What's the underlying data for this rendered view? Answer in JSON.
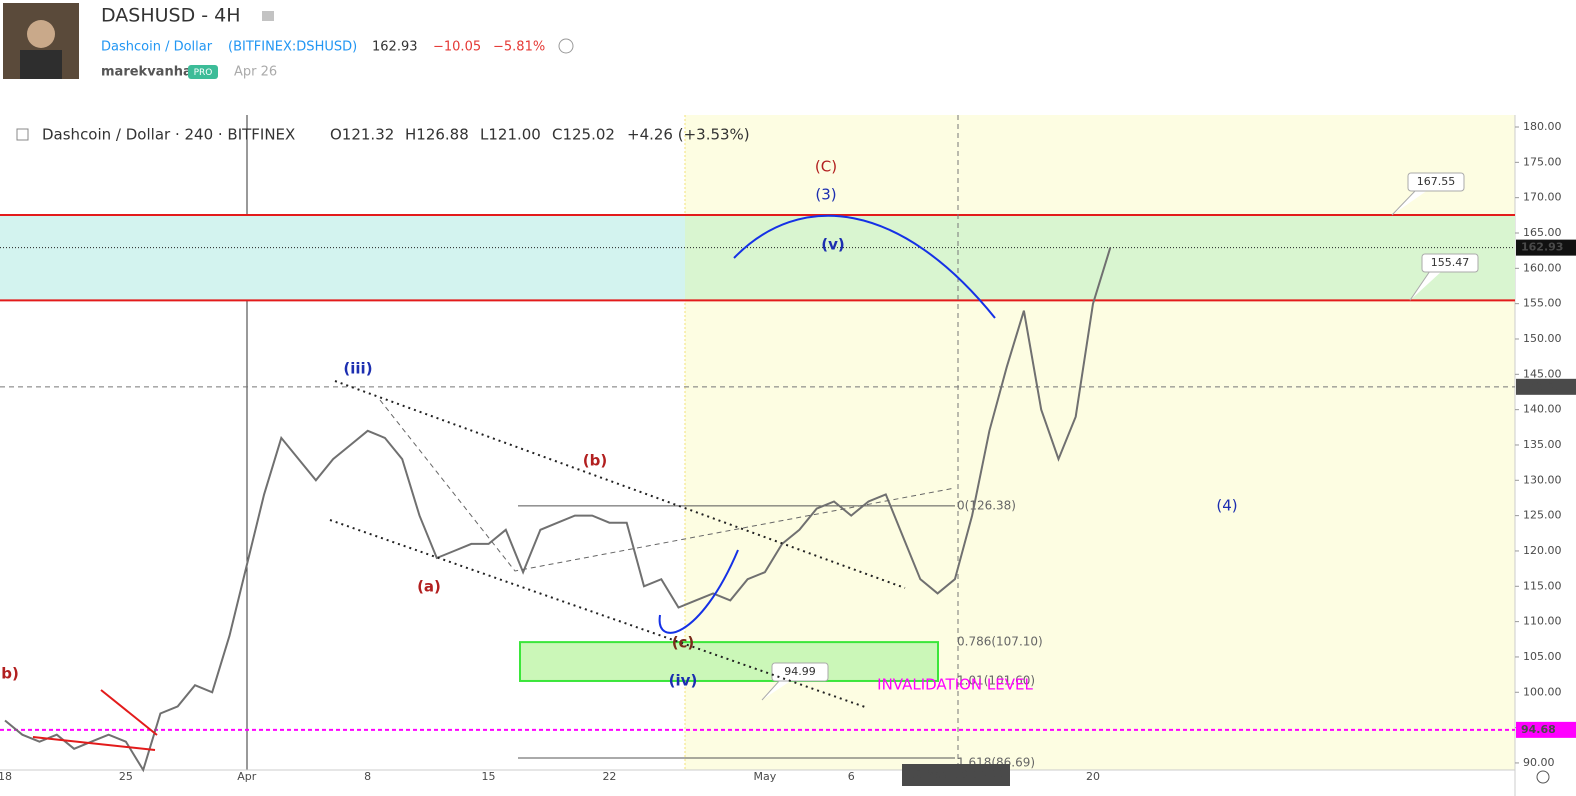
{
  "header": {
    "symbol_title": "DASHUSD - 4H",
    "pair": "Dashcoin / Dollar",
    "ticker": "(BITFINEX:DSHUSD)",
    "price": "162.93",
    "change": "−10.05",
    "change_pct": "−5.81%",
    "author": "marekvanha",
    "badge": "PRO",
    "date": "Apr 26"
  },
  "chart_data": {
    "type": "line",
    "legend_title": "Dashcoin / Dollar · 240 · BITFINEX",
    "ohlc": [
      "O121.32",
      "H126.88",
      "L121.00",
      "C125.02",
      "+4.26 (+3.53%)"
    ],
    "categories": [
      "18",
      null,
      null,
      null,
      null,
      null,
      null,
      "25",
      null,
      null,
      null,
      null,
      null,
      null,
      "Apr",
      null,
      null,
      null,
      null,
      null,
      null,
      "8",
      null,
      null,
      null,
      null,
      null,
      null,
      "15",
      null,
      null,
      null,
      null,
      null,
      null,
      "22",
      null,
      null,
      null,
      null,
      null,
      null,
      null,
      null,
      "May",
      null,
      null,
      null,
      null,
      "6",
      null,
      null,
      null,
      null,
      null,
      null,
      null,
      null,
      null,
      null,
      null,
      null,
      null,
      "20",
      null,
      null,
      null,
      null,
      null,
      null,
      null,
      null,
      null,
      null,
      null,
      null,
      null,
      null,
      null,
      null,
      null,
      null,
      null,
      null,
      null,
      null,
      null,
      null
    ],
    "values": [
      96,
      94,
      93,
      94,
      92,
      93,
      94,
      93,
      89,
      97,
      98,
      101,
      100,
      108,
      118,
      128,
      136,
      133,
      130,
      133,
      135,
      137,
      136,
      133,
      125,
      119,
      120,
      121,
      121,
      123,
      117,
      123,
      124,
      125,
      125,
      124,
      124,
      115,
      116,
      112,
      113,
      114,
      113,
      116,
      117,
      121,
      123,
      126,
      127,
      125,
      127,
      128,
      122,
      116,
      114,
      116,
      125,
      137,
      146,
      154,
      140,
      133,
      139,
      155,
      162.93,
      null,
      null,
      null,
      null,
      null,
      null,
      null,
      null,
      null,
      null,
      null,
      null,
      null,
      null,
      null,
      null,
      null,
      null,
      null,
      null,
      null,
      null,
      null
    ],
    "color": "#707070",
    "ylim": [
      89,
      181.7
    ],
    "yticks": [
      {
        "value": 90,
        "label": "90.00"
      },
      {
        "value": 95,
        "label": "95.00"
      },
      {
        "value": 100,
        "label": "100.00"
      },
      {
        "value": 105,
        "label": "105.00"
      },
      {
        "value": 110,
        "label": "110.00"
      },
      {
        "value": 115,
        "label": "115.00"
      },
      {
        "value": 120,
        "label": "120.00"
      },
      {
        "value": 125,
        "label": "125.00"
      },
      {
        "value": 130,
        "label": "130.00"
      },
      {
        "value": 135,
        "label": "135.00"
      },
      {
        "value": 140,
        "label": "140.00"
      },
      {
        "value": 145,
        "label": "145.00"
      },
      {
        "value": 150,
        "label": "150.00"
      },
      {
        "value": 155,
        "label": "155.00"
      },
      {
        "value": 160,
        "label": "160.00"
      },
      {
        "value": 165,
        "label": "165.00"
      },
      {
        "value": 170,
        "label": "170.00"
      },
      {
        "value": 175,
        "label": "175.00"
      },
      {
        "value": 180,
        "label": "180.00"
      }
    ],
    "zone": [
      155.47,
      167.55
    ],
    "zone_color": "#e31b1b",
    "last_price": 162.93,
    "crosshair": {
      "price": 143.23,
      "time": "12 May '19 04:00"
    },
    "invalidation": {
      "value": 94.68,
      "label": "INVALIDATION LEVEL",
      "color": "#ff00ff"
    },
    "callout_low": 94.99,
    "fib": [
      {
        "value": 126.38,
        "label": "0(126.38)"
      },
      {
        "value": 107.1,
        "label": "0.786(107.10)"
      },
      {
        "value": 101.6,
        "label": "1.01(101.60)"
      },
      {
        "value": 86.69,
        "label": "1.618(86.69)"
      }
    ],
    "waves": [
      "(C)",
      "(3)",
      "(v)",
      "(iii)",
      "(b)",
      "(a)",
      "(c)",
      "(iv)",
      "(4)",
      "b)"
    ]
  }
}
